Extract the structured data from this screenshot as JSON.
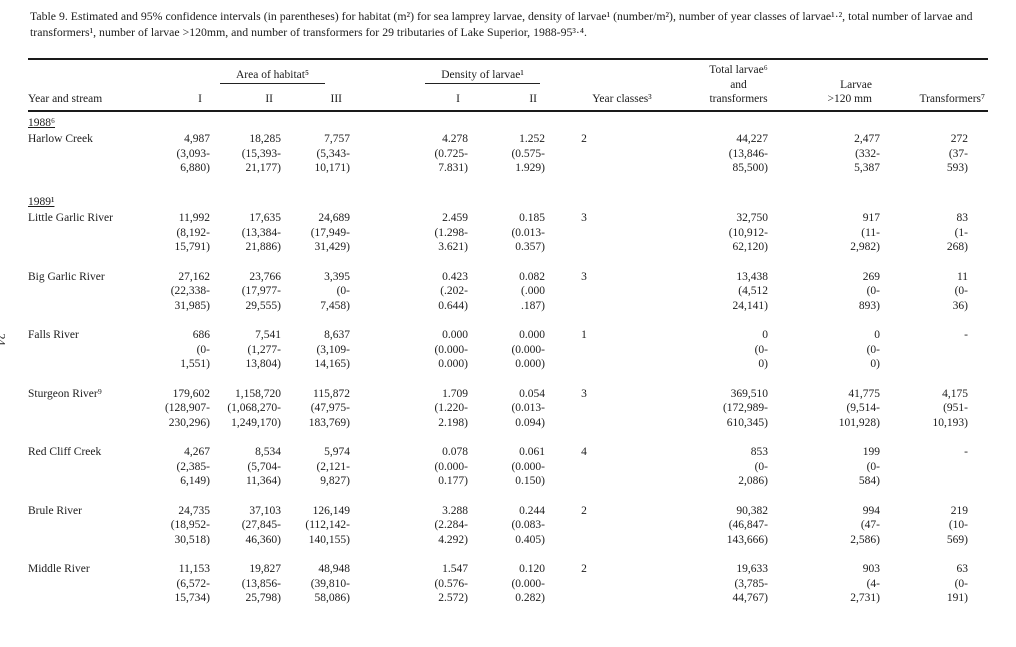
{
  "page": {
    "side_label": "24"
  },
  "caption": {
    "text": "Table 9.   Estimated and 95% confidence intervals (in parentheses) for habitat (m²) for sea lamprey larvae, density of larvae¹ (number/m²), number of year classes of larvae¹·², total number of larvae and transformers¹, number of larvae >120mm, and number of transformers for 29 tributaries of Lake Superior, 1988-95³·⁴."
  },
  "table": {
    "headers": {
      "year_and_stream": "Year and stream",
      "area_group": "Area of habitat⁵",
      "area_subcols": [
        "I",
        "II",
        "III"
      ],
      "density_group": "Density of larvae¹",
      "density_subcols": [
        "I",
        "II"
      ],
      "year_classes": "Year classes³",
      "total": "Total larvae⁶\nand transformers",
      "larvae_120": "Larvae\n>120 mm",
      "transformers": "Transformers⁷"
    },
    "column_order": [
      "area_i",
      "area_ii",
      "area_iii",
      "density_i",
      "density_ii",
      "year_classes",
      "total_larvae_and_transformers",
      "larvae_gt_120mm",
      "transformers"
    ],
    "groups": [
      {
        "year_label": "1988⁶",
        "rows": [
          {
            "stream": "Harlow Creek",
            "cells": [
              [
                "4,987",
                "(3,093-",
                "6,880)"
              ],
              [
                "18,285",
                "(15,393-",
                "21,177)"
              ],
              [
                "7,757",
                "(5,343-",
                "10,171)"
              ],
              [
                "4.278",
                "(0.725-",
                "7.831)"
              ],
              [
                "1.252",
                "(0.575-",
                "1.929)"
              ],
              [
                "2"
              ],
              [
                "44,227",
                "(13,846-",
                "85,500)"
              ],
              [
                "2,477",
                "(332-",
                "5,387"
              ],
              [
                "272",
                "(37-",
                "593)"
              ]
            ]
          }
        ]
      },
      {
        "year_label": "1989¹",
        "rows": [
          {
            "stream": "Little Garlic River",
            "cells": [
              [
                "11,992",
                "(8,192-",
                "15,791)"
              ],
              [
                "17,635",
                "(13,384-",
                "21,886)"
              ],
              [
                "24,689",
                "(17,949-",
                "31,429)"
              ],
              [
                "2.459",
                "(1.298-",
                "3.621)"
              ],
              [
                "0.185",
                "(0.013-",
                "0.357)"
              ],
              [
                "3"
              ],
              [
                "32,750",
                "(10,912-",
                "62,120)"
              ],
              [
                "917",
                "(11-",
                "2,982)"
              ],
              [
                "83",
                "(1-",
                "268)"
              ]
            ]
          },
          {
            "stream": "Big Garlic River",
            "cells": [
              [
                "27,162",
                "(22,338-",
                "31,985)"
              ],
              [
                "23,766",
                "(17,977-",
                "29,555)"
              ],
              [
                "3,395",
                "(0-",
                "7,458)"
              ],
              [
                "0.423",
                "(.202-",
                "0.644)"
              ],
              [
                "0.082",
                "(.000",
                ".187)"
              ],
              [
                "3"
              ],
              [
                "13,438",
                "(4,512",
                "24,141)"
              ],
              [
                "269",
                "(0-",
                "893)"
              ],
              [
                "11",
                "(0-",
                "36)"
              ]
            ]
          },
          {
            "stream": "Falls River",
            "cells": [
              [
                "686",
                "(0-",
                "1,551)"
              ],
              [
                "7,541",
                "(1,277-",
                "13,804)"
              ],
              [
                "8,637",
                "(3,109-",
                "14,165)"
              ],
              [
                "0.000",
                "(0.000-",
                "0.000)"
              ],
              [
                "0.000",
                "(0.000-",
                "0.000)"
              ],
              [
                "1"
              ],
              [
                "0",
                "(0-",
                "0)"
              ],
              [
                "0",
                "(0-",
                "0)"
              ],
              [
                "-"
              ]
            ]
          },
          {
            "stream": "Sturgeon River⁹",
            "cells": [
              [
                "179,602",
                "(128,907-",
                "230,296)"
              ],
              [
                "1,158,720",
                "(1,068,270-",
                "1,249,170)"
              ],
              [
                "115,872",
                "(47,975-",
                "183,769)"
              ],
              [
                "1.709",
                "(1.220-",
                "2.198)"
              ],
              [
                "0.054",
                "(0.013-",
                "0.094)"
              ],
              [
                "3"
              ],
              [
                "369,510",
                "(172,989-",
                "610,345)"
              ],
              [
                "41,775",
                "(9,514-",
                "101,928)"
              ],
              [
                "4,175",
                "(951-",
                "10,193)"
              ]
            ]
          },
          {
            "stream": "Red Cliff Creek",
            "cells": [
              [
                "4,267",
                "(2,385-",
                "6,149)"
              ],
              [
                "8,534",
                "(5,704-",
                "11,364)"
              ],
              [
                "5,974",
                "(2,121-",
                "9,827)"
              ],
              [
                "0.078",
                "(0.000-",
                "0.177)"
              ],
              [
                "0.061",
                "(0.000-",
                "0.150)"
              ],
              [
                "4"
              ],
              [
                "853",
                "(0-",
                "2,086)"
              ],
              [
                "199",
                "(0-",
                "584)"
              ],
              [
                "-"
              ]
            ]
          },
          {
            "stream": "Brule River",
            "cells": [
              [
                "24,735",
                "(18,952-",
                "30,518)"
              ],
              [
                "37,103",
                "(27,845-",
                "46,360)"
              ],
              [
                "126,149",
                "(112,142-",
                "140,155)"
              ],
              [
                "3.288",
                "(2.284-",
                "4.292)"
              ],
              [
                "0.244",
                "(0.083-",
                "0.405)"
              ],
              [
                "2"
              ],
              [
                "90,382",
                "(46,847-",
                "143,666)"
              ],
              [
                "994",
                "(47-",
                "2,586)"
              ],
              [
                "219",
                "(10-",
                "569)"
              ]
            ]
          },
          {
            "stream": "Middle River",
            "cells": [
              [
                "11,153",
                "(6,572-",
                "15,734)"
              ],
              [
                "19,827",
                "(13,856-",
                "25,798)"
              ],
              [
                "48,948",
                "(39,810-",
                "58,086)"
              ],
              [
                "1.547",
                "(0.576-",
                "2.572)"
              ],
              [
                "0.120",
                "(0.000-",
                "0.282)"
              ],
              [
                "2"
              ],
              [
                "19,633",
                "(3,785-",
                "44,767)"
              ],
              [
                "903",
                "(4-",
                "2,731)"
              ],
              [
                "63",
                "(0-",
                "191)"
              ]
            ]
          }
        ]
      }
    ]
  }
}
